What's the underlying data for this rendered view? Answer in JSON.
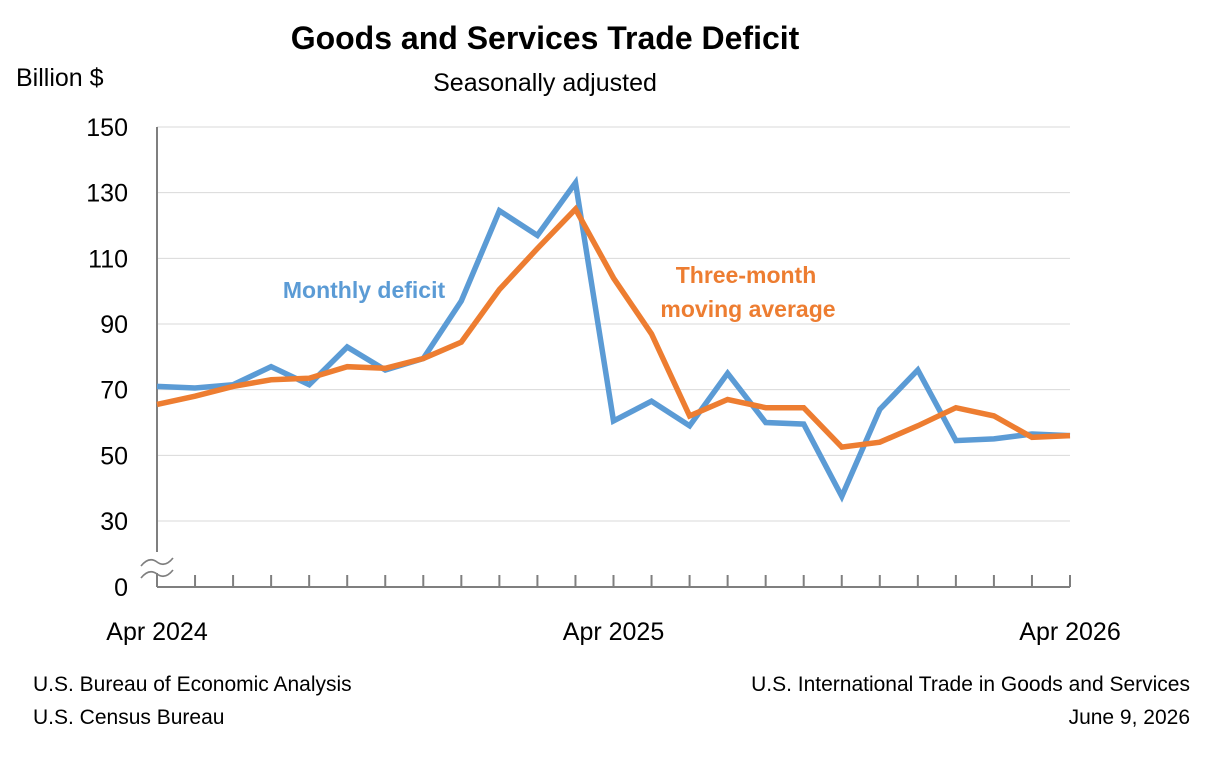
{
  "chart_data": {
    "type": "line",
    "title": "Goods and Services Trade Deficit",
    "subtitle": "Seasonally adjusted",
    "ylabel": "Billion $",
    "ylim": [
      0,
      150
    ],
    "y_ticks": [
      0,
      30,
      50,
      70,
      90,
      110,
      130,
      150
    ],
    "y_axis_break": true,
    "grid": "horizontal",
    "x_tick_labels": [
      {
        "index": 0,
        "label": "Apr 2024"
      },
      {
        "index": 12,
        "label": "Apr 2025"
      },
      {
        "index": 24,
        "label": "Apr 2026"
      }
    ],
    "x": [
      "Apr 2024",
      "May 2024",
      "Jun 2024",
      "Jul 2024",
      "Aug 2024",
      "Sep 2024",
      "Oct 2024",
      "Nov 2024",
      "Dec 2024",
      "Jan 2025",
      "Feb 2025",
      "Mar 2025",
      "Apr 2025",
      "May 2025",
      "Jun 2025",
      "Jul 2025",
      "Aug 2025",
      "Sep 2025",
      "Oct 2025",
      "Nov 2025",
      "Dec 2025",
      "Jan 2026",
      "Feb 2026",
      "Mar 2026",
      "Apr 2026"
    ],
    "series": [
      {
        "name": "Monthly deficit",
        "color": "#5B9BD5",
        "values": [
          71,
          70.5,
          71.5,
          77,
          71.5,
          83,
          76,
          79.5,
          97,
          124.5,
          117,
          133,
          60.5,
          66.5,
          59,
          75,
          60,
          59.5,
          37.5,
          64,
          76,
          54.5,
          55,
          56.5,
          56
        ]
      },
      {
        "name": "Three-month moving average",
        "color": "#ED7D31",
        "values": [
          65.5,
          68,
          71,
          73,
          73.5,
          77,
          76.5,
          79.5,
          84.5,
          100.5,
          113,
          125,
          104,
          87,
          62,
          67,
          64.5,
          64.5,
          52.5,
          54,
          59,
          64.5,
          62,
          55.5,
          56
        ]
      }
    ],
    "annotations": [
      {
        "text": "Monthly deficit",
        "color": "#5B9BD5"
      },
      {
        "text": "Three-month",
        "color": "#ED7D31"
      },
      {
        "text": "moving average",
        "color": "#ED7D31"
      }
    ]
  },
  "footer": {
    "left_line1": "U.S. Bureau of Economic Analysis",
    "left_line2": "U.S. Census Bureau",
    "right_line1": "U.S. International Trade in Goods and Services",
    "right_line2": "June 9, 2026"
  }
}
